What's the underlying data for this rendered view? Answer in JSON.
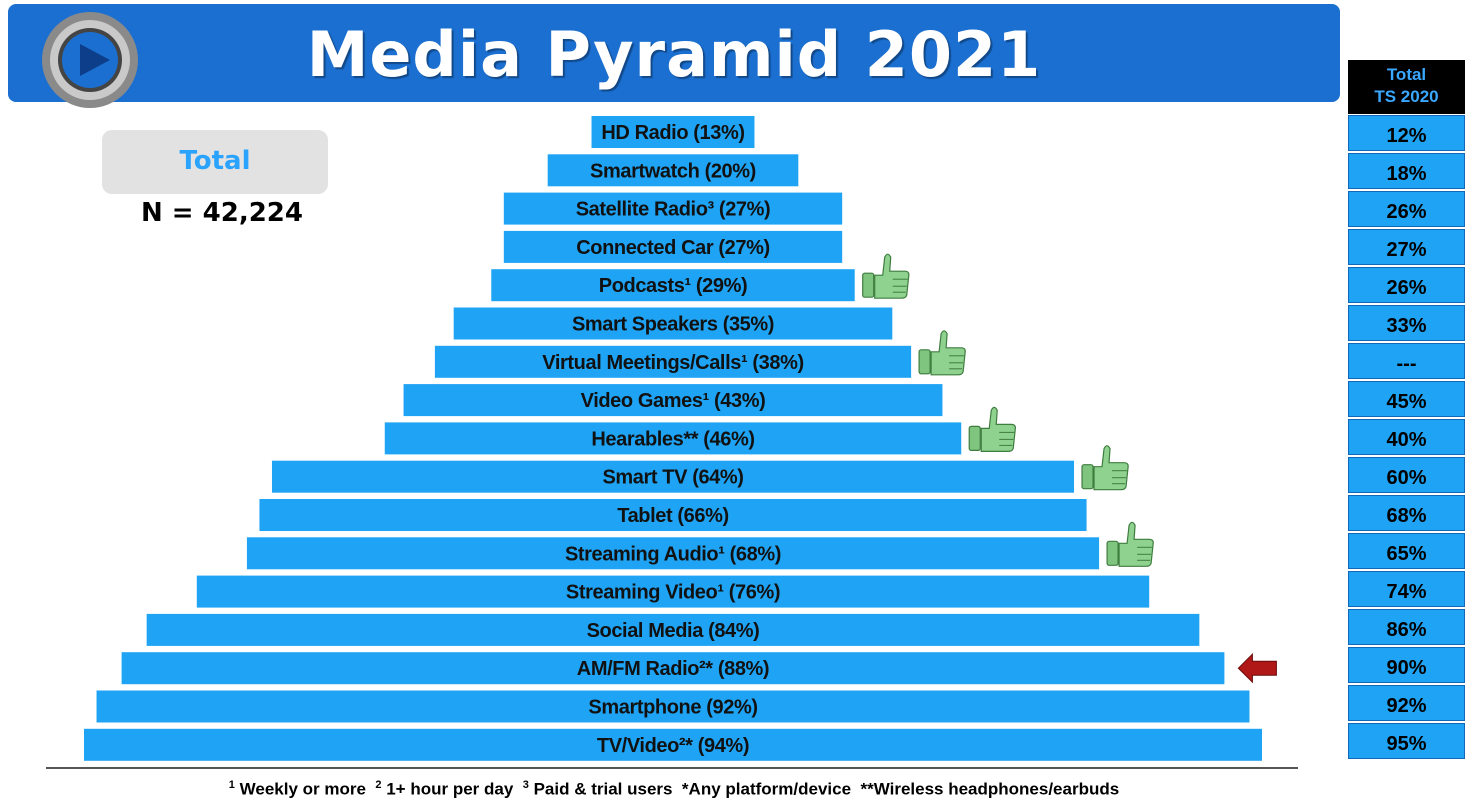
{
  "header": {
    "title": "Media Pyramid 2021",
    "logo_icon": "play-button-logo"
  },
  "total_box": {
    "label": "Total",
    "sample_size": "N = 42,224"
  },
  "ts_column": {
    "header_line1": "Total",
    "header_line2": "TS 2020",
    "values": [
      "12%",
      "18%",
      "26%",
      "27%",
      "26%",
      "33%",
      "---",
      "45%",
      "40%",
      "60%",
      "68%",
      "65%",
      "74%",
      "86%",
      "90%",
      "92%",
      "95%"
    ]
  },
  "chart_data": {
    "type": "bar",
    "orientation": "horizontal-centered-pyramid",
    "categories": [
      "HD Radio (13%)",
      "Smartwatch (20%)",
      "Satellite Radio³ (27%)",
      "Connected Car (27%)",
      "Podcasts¹ (29%)",
      "Smart Speakers (35%)",
      "Virtual Meetings/Calls¹ (38%)",
      "Video Games¹ (43%)",
      "Hearables** (46%)",
      "Smart TV (64%)",
      "Tablet (66%)",
      "Streaming Audio¹ (68%)",
      "Streaming Video¹ (76%)",
      "Social Media  (84%)",
      "AM/FM Radio²* (88%)",
      "Smartphone (92%)",
      "TV/Video²* (94%)"
    ],
    "values": [
      13,
      20,
      27,
      27,
      29,
      35,
      38,
      43,
      46,
      64,
      66,
      68,
      76,
      84,
      88,
      92,
      94
    ],
    "thumbs_up": [
      false,
      false,
      false,
      false,
      true,
      false,
      true,
      false,
      true,
      true,
      false,
      true,
      false,
      false,
      false,
      false,
      false
    ],
    "arrow_marker": [
      false,
      false,
      false,
      false,
      false,
      false,
      false,
      false,
      false,
      false,
      false,
      false,
      false,
      false,
      true,
      false,
      false
    ],
    "bar_color": "#1fa3f4"
  },
  "footnote": {
    "parts": [
      {
        "sup": "1",
        "text": " Weekly or more  "
      },
      {
        "sup": "2",
        "text": " 1+ hour per day  "
      },
      {
        "sup": "3",
        "text": " Paid & trial users  *Any platform/device  **Wireless headphones/earbuds"
      }
    ]
  },
  "colors": {
    "header_bg": "#1b6fd0",
    "bar": "#1fa3f4",
    "arrow": "#b01818",
    "thumb": "#7fc47f"
  }
}
